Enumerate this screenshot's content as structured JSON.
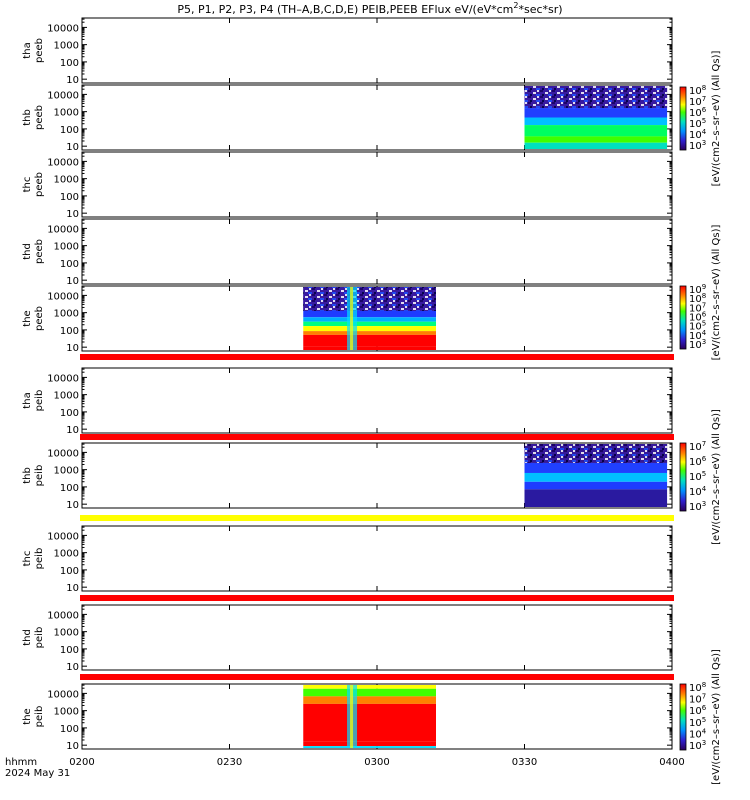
{
  "title": {
    "text": "P5, P1, P2, P3, P4 (TH–A,B,C,D,E) PEIB,PEEB EFlux eV/(eV*cm",
    "sup": "2",
    "tail": "*sec*sr)"
  },
  "time_axis": {
    "label_line1": "hhmm",
    "label_line2": "2024 May 31",
    "ticks": [
      "0200",
      "0230",
      "0300",
      "0330",
      "0400"
    ]
  },
  "y_ticks": [
    "10000",
    "1000",
    "100",
    "10"
  ],
  "colorbars": [
    {
      "label": "eV/(cm^2-s-sr-eV) (All Qs)",
      "label_text": "[eV/(cm2–s–sr–eV) (All Qs)]",
      "ticks": [
        {
          "b": "10",
          "e": "8"
        },
        {
          "b": "10",
          "e": "7"
        },
        {
          "b": "10",
          "e": "6"
        },
        {
          "b": "10",
          "e": "5"
        },
        {
          "b": "10",
          "e": "4"
        },
        {
          "b": "10",
          "e": "3"
        }
      ]
    },
    {
      "label": "eV/(cm2-s-sr-eV) (All Qs)",
      "label_text": "[eV/(cm2–s–sr–eV) (All Qs)]",
      "ticks": [
        {
          "b": "10",
          "e": "9"
        },
        {
          "b": "10",
          "e": "8"
        },
        {
          "b": "10",
          "e": "7"
        },
        {
          "b": "10",
          "e": "6"
        },
        {
          "b": "10",
          "e": "5"
        },
        {
          "b": "10",
          "e": "4"
        },
        {
          "b": "10",
          "e": "3"
        }
      ]
    },
    {
      "label": "eV/(cm2-s-sr-eV) (All Qs)",
      "label_text": "[eV/(cm2–s–sr–eV) (All Qs)]",
      "ticks": [
        {
          "b": "10",
          "e": "7"
        },
        {
          "b": "10",
          "e": "6"
        },
        {
          "b": "10",
          "e": "5"
        },
        {
          "b": "10",
          "e": "4"
        },
        {
          "b": "10",
          "e": "3"
        }
      ]
    },
    {
      "label": "eV/(cm2-s-sr-eV) (All Qs)",
      "label_text": "[eV/(cm2–s–sr–eV) (All Qs)]",
      "ticks": [
        {
          "b": "10",
          "e": "8"
        },
        {
          "b": "10",
          "e": "7"
        },
        {
          "b": "10",
          "e": "6"
        },
        {
          "b": "10",
          "e": "5"
        },
        {
          "b": "10",
          "e": "4"
        },
        {
          "b": "10",
          "e": "3"
        }
      ]
    }
  ],
  "chart_data": {
    "type": "heatmap",
    "title": "P5, P1, P2, P3, P4 (TH-A,B,C,D,E) PEIB,PEEB EFlux eV/(eV*cm2*sec*sr)",
    "x_axis": {
      "label": "hhmm 2024 May 31",
      "range": [
        "0200",
        "0400"
      ],
      "ticks": [
        "0200",
        "0230",
        "0300",
        "0330",
        "0400"
      ]
    },
    "y_axis": {
      "scale": "log",
      "ticks": [
        10,
        100,
        1000,
        10000
      ]
    },
    "panels": [
      {
        "ylabel": [
          "tha",
          "peeb"
        ],
        "data_intervals": []
      },
      {
        "ylabel": [
          "thb",
          "peeb"
        ],
        "data_intervals": [
          [
            "0330",
            "0359"
          ]
        ],
        "colorbar_range": [
          "1e3",
          "1e8"
        ]
      },
      {
        "ylabel": [
          "thc",
          "peeb"
        ],
        "data_intervals": []
      },
      {
        "ylabel": [
          "thd",
          "peeb"
        ],
        "data_intervals": []
      },
      {
        "ylabel": [
          "the",
          "peeb"
        ],
        "data_intervals": [
          [
            "0245",
            "0312"
          ]
        ],
        "colorbar_range": [
          "1e3",
          "1e9"
        ]
      },
      {
        "ylabel": [
          "tha",
          "peib"
        ],
        "data_intervals": []
      },
      {
        "ylabel": [
          "thb",
          "peib"
        ],
        "data_intervals": [
          [
            "0330",
            "0359"
          ]
        ],
        "colorbar_range": [
          "1e3",
          "1e7"
        ]
      },
      {
        "ylabel": [
          "thc",
          "peib"
        ],
        "data_intervals": []
      },
      {
        "ylabel": [
          "thd",
          "peib"
        ],
        "data_intervals": []
      },
      {
        "ylabel": [
          "the",
          "peib"
        ],
        "data_intervals": [
          [
            "0245",
            "0312"
          ]
        ],
        "colorbar_range": [
          "1e3",
          "1e8"
        ]
      }
    ],
    "bars_between_panels": [
      {
        "after_panel": 5,
        "color": "#ff0000"
      },
      {
        "after_panel": 6,
        "color": "#ff0000"
      },
      {
        "after_panel": 7,
        "color": "#ffff00"
      },
      {
        "after_panel": 8,
        "color": "#ff0000"
      },
      {
        "after_panel": 9,
        "color": "#ff0000"
      }
    ]
  }
}
